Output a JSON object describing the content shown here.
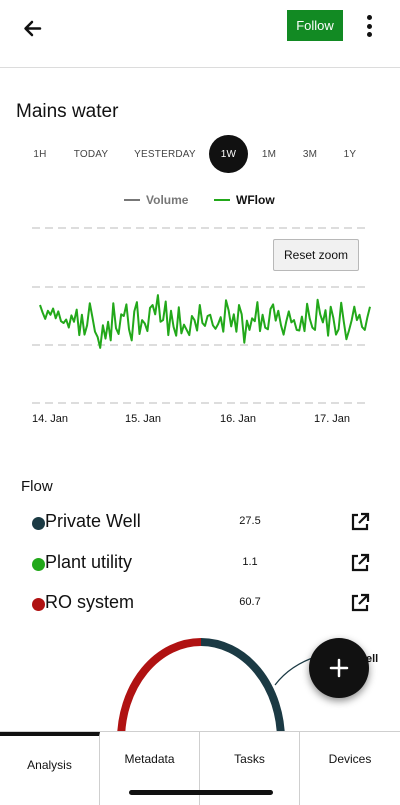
{
  "header": {
    "back_icon": "arrow-left-icon",
    "follow_label": "Follow",
    "more_icon": "more-vertical-icon",
    "accent_color": "#128a23"
  },
  "page": {
    "title": "Mains water"
  },
  "ranges": {
    "items": [
      "1H",
      "TODAY",
      "YESTERDAY",
      "1W",
      "1M",
      "3M",
      "1Y"
    ],
    "selected": "1W"
  },
  "chart_data": {
    "type": "line",
    "series": [
      {
        "name": "Volume",
        "color": "#777777",
        "visible": false,
        "values": []
      },
      {
        "name": "WFlow",
        "color": "#22a81a",
        "visible": true,
        "values": [
          0.69,
          0.56,
          0.45,
          0.59,
          0.52,
          0.63,
          0.46,
          0.58,
          0.41,
          0.38,
          0.44,
          0.3,
          0.51,
          0.4,
          0.61,
          0.17,
          0.52,
          0.18,
          0.34,
          0.72,
          0.48,
          0.23,
          0.14,
          -0.05,
          0.34,
          0.11,
          0.4,
          0.08,
          0.72,
          0.29,
          0.19,
          0.53,
          0.5,
          0.7,
          0.27,
          0.08,
          0.58,
          0.74,
          0.19,
          0.43,
          0.37,
          0.24,
          0.64,
          0.69,
          0.53,
          0.86,
          0.4,
          0.43,
          0.75,
          0.17,
          0.59,
          0.31,
          0.16,
          0.65,
          0.2,
          0.35,
          0.26,
          0.17,
          0.5,
          0.43,
          0.25,
          0.69,
          0.38,
          0.33,
          0.5,
          0.52,
          0.34,
          0.28,
          0.36,
          0.48,
          0.23,
          0.77,
          0.6,
          0.32,
          0.53,
          0.23,
          0.69,
          0.53,
          0.04,
          0.42,
          0.26,
          0.46,
          0.41,
          0.74,
          0.24,
          0.52,
          0.3,
          0.27,
          0.62,
          0.7,
          0.42,
          0.59,
          0.34,
          0.18,
          0.4,
          0.58,
          0.39,
          0.43,
          0.26,
          0.25,
          0.49,
          0.24,
          0.71,
          0.45,
          0.3,
          0.26,
          0.78,
          0.53,
          0.39,
          0.6,
          0.16,
          0.66,
          0.47,
          0.18,
          0.27,
          0.73,
          0.4,
          0.1,
          0.25,
          0.43,
          0.66,
          0.43,
          0.52,
          0.31,
          0.26,
          0.48,
          0.66
        ]
      }
    ],
    "x_ticks": [
      "14. Jan",
      "15. Jan",
      "16. Jan",
      "17. Jan"
    ],
    "y_range": [
      0,
      1
    ],
    "grid": true,
    "legend": "top-center"
  },
  "chart": {
    "reset_zoom_label": "Reset zoom"
  },
  "flow": {
    "title": "Flow",
    "link_icon": "open-external-icon",
    "items": [
      {
        "name": "Private Well",
        "value": "27.5",
        "color": "#1b3a44"
      },
      {
        "name": "Plant utility",
        "value": "1.1",
        "color": "#22a81a"
      },
      {
        "name": "RO system",
        "value": "60.7",
        "color": "#b01212"
      }
    ]
  },
  "gauge": {
    "segments": [
      {
        "label": "RO system",
        "color": "#b01212",
        "fraction": 0.5
      },
      {
        "label": "Private Well",
        "color": "#1b3a44",
        "fraction": 0.5
      }
    ],
    "partial_label": "ell"
  },
  "fab": {
    "icon": "plus-icon"
  },
  "tabs": {
    "items": [
      "Analysis",
      "Metadata",
      "Tasks",
      "Devices"
    ],
    "active": "Analysis"
  }
}
